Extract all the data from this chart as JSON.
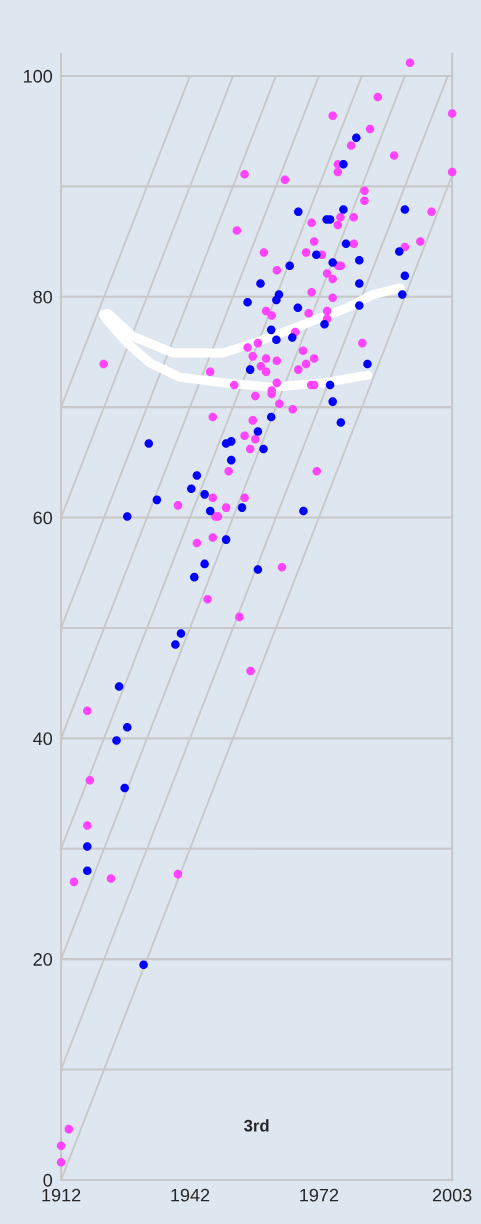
{
  "chart_data": {
    "type": "scatter",
    "xlim": [
      1912,
      2003
    ],
    "ylim": [
      0,
      102
    ],
    "xticks": [
      1912,
      1942,
      1972,
      2003
    ],
    "yticks": [
      0,
      {
        "value": 10,
        "label": null
      },
      20,
      {
        "value": 30,
        "label": null
      },
      40,
      {
        "value": 50,
        "label": null
      },
      60,
      {
        "value": 70,
        "label": null
      },
      80,
      {
        "value": 90,
        "label": null
      },
      100
    ],
    "grid": "y",
    "legend": false,
    "annotations": [
      "3rd"
    ],
    "series": [
      {
        "type": "line",
        "color": "#c8c8c8",
        "x": [
          1912,
          1942
        ],
        "values": [
          70,
          100
        ]
      },
      {
        "type": "line",
        "color": "#c8c8c8",
        "x": [
          1912,
          1952
        ],
        "values": [
          60,
          100
        ]
      },
      {
        "type": "line",
        "color": "#c8c8c8",
        "x": [
          1912,
          1962
        ],
        "values": [
          50,
          100
        ]
      },
      {
        "type": "line",
        "color": "#c8c8c8",
        "x": [
          1912,
          1972
        ],
        "values": [
          40,
          100
        ]
      },
      {
        "type": "line",
        "color": "#c8c8c8",
        "x": [
          1912,
          1982
        ],
        "values": [
          30,
          100
        ]
      },
      {
        "type": "line",
        "color": "#c8c8c8",
        "x": [
          1912,
          1992
        ],
        "values": [
          20,
          100
        ]
      },
      {
        "type": "line",
        "color": "#c8c8c8",
        "x": [
          1912,
          2002
        ],
        "values": [
          10,
          100
        ]
      },
      {
        "type": "line",
        "color": "#c8c8c8",
        "x": [
          1912,
          2003
        ],
        "values": [
          0,
          91
        ]
      },
      {
        "type": "line",
        "color": "#ffffff",
        "x": [
          1983.4,
          1973.0,
          1961.3,
          1949.7,
          1939.7,
          1932.7,
          1927.4,
          1922.7,
          1921.9,
          1922.9,
          1928.8,
          1938.1,
          1949.7,
          1957.6,
          1969.2,
          1978.6,
          1984.6,
          1990.9
        ],
        "values": [
          72.9,
          72.2,
          71.8,
          72.2,
          72.7,
          74.0,
          75.8,
          77.9,
          78.4,
          78.5,
          76.4,
          74.9,
          74.9,
          75.9,
          77.6,
          79.0,
          80.2,
          80.8
        ]
      },
      {
        "marker": "circle",
        "color": "#ff44ff",
        "x": [
          1993.2,
          1985.7,
          1975.2,
          2003,
          1983.9,
          1979.5,
          1989.5,
          1976.4,
          1976.4,
          2003,
          1954.7,
          1964.1,
          1982.6,
          1982.6,
          1998.2,
          1977.0,
          1980.1,
          1970.3,
          1976.4,
          1952.9,
          1970.9,
          1995.6,
          1980.1,
          1959.2,
          1969.0,
          1972.7,
          1992.0,
          1976.5,
          1977.1,
          1962.2,
          1973.9,
          1975.2,
          1970.3,
          1975.2,
          1959.7,
          1961.0,
          1969.6,
          1973.9,
          1973.9,
          1966.5,
          1957.8,
          1955.4,
          1982.1,
          1968.3,
          1956.6,
          1959.7,
          1962.2,
          1970.9,
          1921.9,
          1958.5,
          1969.0,
          1967.2,
          1959.7,
          1946.7,
          1952.3,
          1962.2,
          1970.2,
          1970.9,
          1961.0,
          1961.0,
          1957.2,
          1962.8,
          1965.9,
          1947.3,
          1956.6,
          1954.7,
          1957.2,
          1956.0,
          1951.0,
          1971.5,
          1947.3,
          1954.7,
          1939.2,
          1950.4,
          1947.9,
          1948.5,
          1947.3,
          1943.6,
          1963.4,
          1946.1,
          1953.5,
          1956.1,
          1918.1,
          1918.7,
          1918.1,
          1915.0,
          1923.6,
          1939.2,
          1913.8,
          1912,
          1912
        ],
        "values": [
          101.2,
          98.1,
          96.4,
          96.6,
          95.2,
          93.7,
          92.8,
          92.0,
          91.3,
          91.3,
          91.1,
          90.6,
          89.6,
          88.7,
          87.7,
          87.2,
          87.2,
          86.7,
          86.5,
          86.0,
          85.0,
          85.0,
          84.8,
          84.0,
          84.0,
          83.8,
          84.5,
          82.8,
          82.8,
          82.4,
          82.1,
          81.6,
          80.4,
          79.9,
          78.7,
          78.3,
          78.5,
          78.7,
          78.0,
          76.8,
          75.8,
          75.4,
          75.8,
          75.1,
          74.6,
          74.4,
          74.2,
          74.4,
          73.9,
          73.7,
          73.9,
          73.4,
          73.2,
          73.2,
          72.0,
          72.2,
          72.0,
          72.0,
          71.5,
          71.2,
          71.0,
          70.3,
          69.8,
          69.1,
          68.8,
          67.4,
          67.1,
          66.2,
          64.2,
          64.2,
          61.8,
          61.8,
          61.1,
          60.9,
          60.1,
          60.1,
          58.2,
          57.7,
          55.5,
          52.6,
          51.0,
          46.1,
          42.5,
          36.2,
          32.1,
          27.0,
          27.3,
          27.7,
          4.6,
          3.1,
          1.6
        ]
      },
      {
        "marker": "circle",
        "color": "#0000ff",
        "x": [
          1980.7,
          1977.7,
          1967.2,
          1973.8,
          1974.6,
          1977.7,
          1992.0,
          1978.3,
          1990.7,
          1971.4,
          1975.2,
          1981.4,
          1965.2,
          1992.0,
          1958.4,
          1981.4,
          1962.7,
          1962.1,
          1991.4,
          1955.4,
          1967.1,
          1981.4,
          1973.3,
          1960.9,
          1962.1,
          1965.8,
          1983.3,
          1956.0,
          1974.6,
          1975.2,
          1977.1,
          1960.9,
          1957.8,
          1932.4,
          1950.4,
          1951.6,
          1959.1,
          1951.6,
          1943.6,
          1942.3,
          1945.4,
          1934.3,
          1946.7,
          1954.1,
          1968.4,
          1927.4,
          1950.4,
          1945.4,
          1957.8,
          1943.0,
          1939.9,
          1938.6,
          1925.5,
          1927.4,
          1924.9,
          1926.8,
          1918.1,
          1918.1,
          1931.2
        ],
        "values": [
          94.4,
          92.0,
          87.7,
          87.0,
          87.0,
          87.9,
          87.9,
          84.8,
          84.1,
          83.8,
          83.1,
          83.3,
          82.8,
          81.9,
          81.2,
          81.2,
          80.2,
          79.7,
          80.2,
          79.5,
          79.0,
          79.2,
          77.5,
          77.0,
          76.1,
          76.3,
          73.9,
          73.4,
          72.0,
          70.5,
          68.6,
          69.1,
          67.8,
          66.7,
          66.7,
          66.9,
          66.2,
          65.2,
          63.8,
          62.6,
          62.1,
          61.6,
          60.6,
          60.9,
          60.6,
          60.1,
          58.0,
          55.8,
          55.3,
          54.6,
          49.5,
          48.5,
          44.7,
          41.0,
          39.8,
          35.5,
          30.2,
          28.0,
          19.5
        ]
      }
    ]
  }
}
